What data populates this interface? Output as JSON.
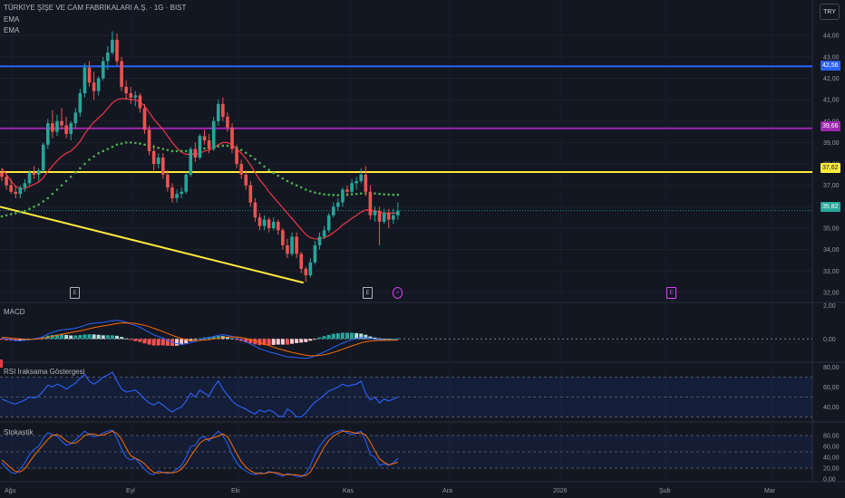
{
  "header": {
    "title": "TÜRKİYE ŞİŞE VE CAM FABRİKALARI A.Ş. · 1G · BIST",
    "indicators": [
      "EMA",
      "EMA"
    ],
    "currency": "TRY"
  },
  "colors": {
    "bg": "#131722",
    "up": "#26a69a",
    "down": "#ef5350",
    "ema_fast": "#f23645",
    "ema_slow": "#4caf50",
    "hline_blue": "#2962ff",
    "hline_purple": "#9c27b0",
    "hline_yellow": "#ffeb3b",
    "macd": "#2962ff",
    "signal": "#ff6d00",
    "rsi": "#2962ff",
    "stoch_k": "#2962ff",
    "stoch_d": "#ff6d00"
  },
  "price_labels": {
    "blue": "42,56",
    "purple": "39,66",
    "yellow": "37,62",
    "last": "35,82"
  },
  "events": [
    {
      "label": "E",
      "kind": "earnings"
    },
    {
      "label": "E",
      "kind": "earnings"
    },
    {
      "label": "⚡",
      "kind": "dividend"
    },
    {
      "label": "E",
      "kind": "earnings"
    }
  ],
  "panes": {
    "macd_title": "MACD",
    "rsi_title": "RSI Iraksama Göstergesi",
    "stoch_title": "Stokastik"
  },
  "chart_data": [
    {
      "type": "candlestick",
      "title": "TÜRKİYE ŞİŞE VE CAM FABRİKALARI A.Ş. · 1G · BIST",
      "y_ticks": [
        "44,00",
        "43,00",
        "42,00",
        "41,00",
        "40,00",
        "39,00",
        "38,00",
        "37,00",
        "36,00",
        "35,00",
        "34,00",
        "33,00",
        "32,00"
      ],
      "x_ticks": [
        "Ağu",
        "Eyl",
        "Eki",
        "Kas",
        "Ara",
        "2026",
        "Şub",
        "Mar"
      ],
      "ylim": [
        31.7,
        44.6
      ],
      "candles": [
        [
          37.6,
          37.8,
          37.2,
          37.4
        ],
        [
          37.4,
          37.6,
          36.8,
          37.0
        ],
        [
          37.0,
          37.3,
          36.6,
          36.7
        ],
        [
          36.7,
          37.0,
          36.4,
          36.6
        ],
        [
          36.6,
          37.0,
          36.4,
          36.9
        ],
        [
          36.9,
          37.3,
          36.7,
          37.1
        ],
        [
          37.1,
          37.7,
          37.0,
          37.6
        ],
        [
          37.6,
          37.9,
          37.3,
          37.5
        ],
        [
          37.5,
          37.8,
          37.2,
          37.7
        ],
        [
          37.7,
          39.0,
          37.6,
          38.9
        ],
        [
          38.9,
          40.1,
          38.7,
          39.9
        ],
        [
          39.9,
          40.5,
          39.2,
          39.5
        ],
        [
          39.5,
          40.3,
          39.3,
          40.0
        ],
        [
          40.0,
          40.6,
          39.6,
          39.8
        ],
        [
          39.8,
          40.2,
          39.2,
          39.4
        ],
        [
          39.4,
          40.0,
          39.1,
          39.9
        ],
        [
          39.9,
          40.6,
          39.7,
          40.4
        ],
        [
          40.4,
          41.5,
          40.2,
          41.3
        ],
        [
          41.3,
          42.7,
          41.1,
          42.5
        ],
        [
          42.5,
          42.8,
          41.6,
          41.8
        ],
        [
          41.8,
          42.3,
          41.0,
          41.4
        ],
        [
          41.4,
          42.1,
          41.2,
          42.0
        ],
        [
          42.0,
          43.0,
          41.9,
          42.8
        ],
        [
          42.8,
          43.5,
          42.4,
          43.2
        ],
        [
          43.2,
          44.2,
          43.1,
          43.8
        ],
        [
          43.8,
          44.1,
          42.6,
          42.8
        ],
        [
          42.8,
          43.0,
          41.4,
          41.6
        ],
        [
          41.6,
          41.9,
          41.0,
          41.3
        ],
        [
          41.3,
          41.6,
          40.8,
          41.1
        ],
        [
          41.1,
          41.4,
          40.7,
          41.2
        ],
        [
          41.2,
          41.3,
          40.4,
          40.6
        ],
        [
          40.6,
          40.8,
          39.4,
          39.6
        ],
        [
          39.6,
          39.8,
          38.4,
          38.6
        ],
        [
          38.6,
          38.9,
          37.7,
          38.0
        ],
        [
          38.0,
          38.5,
          37.8,
          38.3
        ],
        [
          38.3,
          38.5,
          37.3,
          37.5
        ],
        [
          37.5,
          37.7,
          36.7,
          36.9
        ],
        [
          36.9,
          37.1,
          36.2,
          36.4
        ],
        [
          36.4,
          36.8,
          36.2,
          36.6
        ],
        [
          36.6,
          36.9,
          36.4,
          36.7
        ],
        [
          36.7,
          37.6,
          36.6,
          37.5
        ],
        [
          37.5,
          38.8,
          37.4,
          38.7
        ],
        [
          38.7,
          39.0,
          38.1,
          38.3
        ],
        [
          38.3,
          39.4,
          38.2,
          39.3
        ],
        [
          39.3,
          39.6,
          38.9,
          39.1
        ],
        [
          39.1,
          39.4,
          38.5,
          38.7
        ],
        [
          38.7,
          40.2,
          38.6,
          40.0
        ],
        [
          40.0,
          41.0,
          39.8,
          40.8
        ],
        [
          40.8,
          41.1,
          40.0,
          40.2
        ],
        [
          40.2,
          40.4,
          39.5,
          39.7
        ],
        [
          39.7,
          39.9,
          38.5,
          38.7
        ],
        [
          38.7,
          38.9,
          37.8,
          38.0
        ],
        [
          38.0,
          38.2,
          37.3,
          37.5
        ],
        [
          37.5,
          37.7,
          36.8,
          37.0
        ],
        [
          37.0,
          37.2,
          36.0,
          36.2
        ],
        [
          36.2,
          36.4,
          35.3,
          35.5
        ],
        [
          35.5,
          35.7,
          34.9,
          35.1
        ],
        [
          35.1,
          35.6,
          34.9,
          35.4
        ],
        [
          35.4,
          35.5,
          34.8,
          35.0
        ],
        [
          35.0,
          35.5,
          34.9,
          35.3
        ],
        [
          35.3,
          35.4,
          34.7,
          34.9
        ],
        [
          34.9,
          35.0,
          34.0,
          34.2
        ],
        [
          34.2,
          34.5,
          33.6,
          33.8
        ],
        [
          33.8,
          34.8,
          33.7,
          34.6
        ],
        [
          34.6,
          34.8,
          33.6,
          33.8
        ],
        [
          33.8,
          33.9,
          32.9,
          33.1
        ],
        [
          33.1,
          33.2,
          32.5,
          32.8
        ],
        [
          32.8,
          33.6,
          32.7,
          33.4
        ],
        [
          33.4,
          34.4,
          33.3,
          34.2
        ],
        [
          34.2,
          34.8,
          34.0,
          34.6
        ],
        [
          34.6,
          35.1,
          34.5,
          34.9
        ],
        [
          34.9,
          35.7,
          34.8,
          35.6
        ],
        [
          35.6,
          36.2,
          35.5,
          36.0
        ],
        [
          36.0,
          36.4,
          35.8,
          36.2
        ],
        [
          36.2,
          36.9,
          36.0,
          36.8
        ],
        [
          36.8,
          37.0,
          36.5,
          36.7
        ],
        [
          36.7,
          37.3,
          36.6,
          37.1
        ],
        [
          37.1,
          37.4,
          36.8,
          37.2
        ],
        [
          37.2,
          37.8,
          37.1,
          37.5
        ],
        [
          37.5,
          37.9,
          36.5,
          36.7
        ],
        [
          36.7,
          37.0,
          35.4,
          35.6
        ],
        [
          35.6,
          36.0,
          35.3,
          35.8
        ],
        [
          35.8,
          36.0,
          34.2,
          35.3
        ],
        [
          35.3,
          35.9,
          35.2,
          35.7
        ],
        [
          35.7,
          35.9,
          35.0,
          35.4
        ],
        [
          35.4,
          35.9,
          35.2,
          35.6
        ],
        [
          35.6,
          36.2,
          35.4,
          35.82
        ]
      ],
      "ema_fast": [
        37.8,
        37.5,
        37.2,
        36.95,
        36.85,
        36.85,
        36.95,
        37.05,
        37.15,
        37.35,
        37.65,
        37.9,
        38.15,
        38.35,
        38.5,
        38.6,
        38.8,
        39.05,
        39.4,
        39.7,
        39.95,
        40.15,
        40.35,
        40.6,
        40.85,
        41.0,
        41.05,
        41.05,
        41.0,
        41.0,
        40.9,
        40.7,
        40.4,
        40.1,
        39.85,
        39.6,
        39.3,
        39.0,
        38.75,
        38.55,
        38.45,
        38.45,
        38.45,
        38.5,
        38.6,
        38.65,
        38.75,
        38.9,
        39.0,
        39.0,
        38.9,
        38.7,
        38.5,
        38.25,
        37.95,
        37.6,
        37.25,
        37.0,
        36.7,
        36.45,
        36.2,
        35.95,
        35.7,
        35.45,
        35.2,
        34.95,
        34.7,
        34.55,
        34.5,
        34.5,
        34.55,
        34.65,
        34.8,
        34.95,
        35.15,
        35.3,
        35.45,
        35.6,
        35.75,
        35.85,
        35.85,
        35.8,
        35.75,
        35.7,
        35.7,
        35.7,
        35.7
      ],
      "ema_slow": [
        35.55,
        35.6,
        35.65,
        35.7,
        35.75,
        35.8,
        35.9,
        36.0,
        36.1,
        36.25,
        36.4,
        36.6,
        36.8,
        37.0,
        37.2,
        37.4,
        37.6,
        37.8,
        38.0,
        38.2,
        38.35,
        38.5,
        38.6,
        38.7,
        38.8,
        38.9,
        38.95,
        39.0,
        39.0,
        38.98,
        38.95,
        38.9,
        38.85,
        38.8,
        38.75,
        38.7,
        38.65,
        38.6,
        38.6,
        38.6,
        38.6,
        38.62,
        38.65,
        38.7,
        38.72,
        38.75,
        38.78,
        38.82,
        38.85,
        38.85,
        38.82,
        38.75,
        38.65,
        38.52,
        38.38,
        38.22,
        38.05,
        37.88,
        37.72,
        37.58,
        37.45,
        37.32,
        37.2,
        37.1,
        37.0,
        36.9,
        36.8,
        36.72,
        36.66,
        36.62,
        36.58,
        36.56,
        36.55,
        36.54,
        36.55,
        36.56,
        36.58,
        36.6,
        36.62,
        36.63,
        36.63,
        36.62,
        36.6,
        36.58,
        36.57,
        36.56,
        36.56
      ]
    },
    {
      "type": "histogram",
      "title": "MACD",
      "y_ticks": [
        "2,00",
        "0,00"
      ],
      "ylim": [
        -1.4,
        2.2
      ],
      "macd": [
        0.05,
        0.0,
        -0.05,
        -0.1,
        -0.1,
        -0.08,
        -0.05,
        0.0,
        0.05,
        0.15,
        0.3,
        0.4,
        0.48,
        0.55,
        0.58,
        0.6,
        0.65,
        0.72,
        0.82,
        0.9,
        0.95,
        0.98,
        1.0,
        1.05,
        1.1,
        1.12,
        1.08,
        1.0,
        0.9,
        0.8,
        0.7,
        0.55,
        0.4,
        0.25,
        0.15,
        0.05,
        -0.08,
        -0.2,
        -0.28,
        -0.32,
        -0.3,
        -0.22,
        -0.15,
        -0.05,
        0.02,
        0.08,
        0.15,
        0.22,
        0.25,
        0.22,
        0.15,
        0.05,
        -0.05,
        -0.18,
        -0.3,
        -0.45,
        -0.58,
        -0.68,
        -0.78,
        -0.85,
        -0.92,
        -1.0,
        -1.08,
        -1.1,
        -1.12,
        -1.15,
        -1.17,
        -1.12,
        -1.02,
        -0.9,
        -0.78,
        -0.65,
        -0.5,
        -0.38,
        -0.25,
        -0.15,
        -0.05,
        0.02,
        0.08,
        0.08,
        0.02,
        -0.02,
        -0.05,
        -0.08,
        -0.08,
        -0.06,
        -0.04
      ],
      "signal": [
        0.1,
        0.08,
        0.05,
        0.02,
        0.0,
        -0.02,
        -0.03,
        -0.02,
        0.0,
        0.04,
        0.1,
        0.16,
        0.22,
        0.28,
        0.34,
        0.39,
        0.44,
        0.49,
        0.55,
        0.62,
        0.68,
        0.73,
        0.78,
        0.83,
        0.88,
        0.93,
        0.96,
        0.97,
        0.96,
        0.93,
        0.88,
        0.82,
        0.74,
        0.64,
        0.54,
        0.44,
        0.33,
        0.22,
        0.12,
        0.03,
        -0.04,
        -0.08,
        -0.1,
        -0.09,
        -0.07,
        -0.04,
        0.0,
        0.04,
        0.08,
        0.11,
        0.12,
        0.11,
        0.08,
        0.03,
        -0.04,
        -0.12,
        -0.21,
        -0.31,
        -0.4,
        -0.49,
        -0.58,
        -0.66,
        -0.74,
        -0.81,
        -0.87,
        -0.93,
        -0.98,
        -1.01,
        -1.01,
        -0.99,
        -0.95,
        -0.89,
        -0.81,
        -0.72,
        -0.62,
        -0.52,
        -0.42,
        -0.33,
        -0.24,
        -0.17,
        -0.13,
        -0.1,
        -0.09,
        -0.09,
        -0.08,
        -0.08,
        -0.07
      ]
    },
    {
      "type": "line",
      "title": "RSI Iraksama Göstergesi",
      "y_ticks": [
        "80,00",
        "60,00",
        "40,00"
      ],
      "ylim": [
        25,
        85
      ],
      "band": [
        30,
        70
      ],
      "rsi": [
        48,
        46,
        44,
        43,
        45,
        47,
        50,
        49,
        51,
        56,
        62,
        60,
        63,
        61,
        58,
        61,
        64,
        69,
        73,
        66,
        63,
        66,
        70,
        72,
        75,
        66,
        58,
        55,
        56,
        57,
        53,
        48,
        44,
        42,
        45,
        42,
        38,
        35,
        38,
        40,
        46,
        54,
        50,
        57,
        54,
        51,
        60,
        66,
        58,
        52,
        46,
        42,
        40,
        38,
        35,
        33,
        37,
        35,
        37,
        35,
        31,
        30,
        38,
        35,
        30,
        30,
        34,
        40,
        45,
        48,
        52,
        56,
        58,
        60,
        63,
        61,
        62,
        63,
        66,
        54,
        47,
        50,
        44,
        48,
        46,
        48,
        50
      ]
    },
    {
      "type": "line",
      "title": "Stokastik",
      "y_ticks": [
        "80,00",
        "60,00",
        "40,00",
        "20,00",
        "0,00"
      ],
      "ylim": [
        -5,
        105
      ],
      "band": [
        20,
        80
      ],
      "k": [
        30,
        20,
        12,
        10,
        18,
        30,
        45,
        55,
        60,
        75,
        85,
        82,
        78,
        70,
        62,
        65,
        72,
        80,
        88,
        82,
        78,
        80,
        85,
        88,
        90,
        75,
        55,
        40,
        35,
        38,
        28,
        18,
        10,
        8,
        15,
        12,
        10,
        12,
        18,
        25,
        40,
        60,
        62,
        75,
        78,
        70,
        80,
        88,
        80,
        65,
        45,
        30,
        20,
        15,
        10,
        8,
        12,
        10,
        14,
        12,
        8,
        5,
        10,
        8,
        5,
        4,
        10,
        25,
        45,
        60,
        72,
        80,
        85,
        88,
        90,
        85,
        82,
        85,
        88,
        70,
        45,
        40,
        25,
        28,
        25,
        30,
        38
      ],
      "d": [
        35,
        28,
        20,
        14,
        13,
        19,
        31,
        43,
        53,
        63,
        73,
        80,
        82,
        77,
        70,
        66,
        66,
        72,
        80,
        83,
        83,
        80,
        81,
        84,
        88,
        84,
        73,
        57,
        43,
        38,
        34,
        28,
        19,
        12,
        11,
        12,
        12,
        11,
        13,
        18,
        28,
        42,
        54,
        66,
        72,
        74,
        76,
        79,
        83,
        78,
        63,
        47,
        32,
        22,
        15,
        11,
        10,
        10,
        12,
        12,
        11,
        8,
        8,
        8,
        8,
        6,
        6,
        13,
        27,
        43,
        59,
        71,
        79,
        84,
        88,
        88,
        86,
        84,
        85,
        81,
        68,
        52,
        37,
        31,
        26,
        28,
        31
      ]
    }
  ]
}
